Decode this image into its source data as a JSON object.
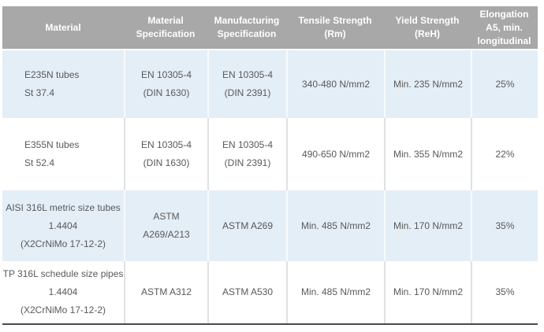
{
  "colors": {
    "header_bg": "#a8a8a8",
    "header_text": "#ffffff",
    "row_alt_bg": "#e4eef6",
    "row_bg": "#ffffff",
    "body_text": "#595959",
    "column_divider_on_alt_row": "#f7fafc",
    "column_divider_on_white_row": "#dfe2e4",
    "bottom_border": "#4a4a4a"
  },
  "table": {
    "columns": [
      {
        "id": "material",
        "lines": [
          "Material"
        ]
      },
      {
        "id": "material-specification",
        "lines": [
          "Material",
          "Specification"
        ]
      },
      {
        "id": "manufacturing-specification",
        "lines": [
          "Manufacturing",
          "Specification"
        ]
      },
      {
        "id": "tensile-strength",
        "lines": [
          "Tensile Strength",
          "(Rm)"
        ]
      },
      {
        "id": "yield-strength",
        "lines": [
          "Yield Strength",
          "(ReH)"
        ]
      },
      {
        "id": "elongation",
        "lines": [
          "Elongation",
          "A5, min.",
          "longitudinal"
        ]
      }
    ],
    "rows": [
      {
        "cells": [
          [
            "E235N tubes",
            "St 37.4"
          ],
          [
            "EN 10305-4",
            "(DIN 1630)"
          ],
          [
            "EN 10305-4",
            "(DIN 2391)"
          ],
          [
            "340-480 N/mm2"
          ],
          [
            "Min. 235 N/mm2"
          ],
          [
            "25%"
          ]
        ]
      },
      {
        "cells": [
          [
            "E355N tubes",
            "St 52.4"
          ],
          [
            "EN 10305-4",
            "(DIN 1630)"
          ],
          [
            "EN 10305-4",
            "(DIN 2391)"
          ],
          [
            "490-650 N/mm2"
          ],
          [
            "Min. 355 N/mm2"
          ],
          [
            "22%"
          ]
        ]
      },
      {
        "cells": [
          [
            "AISI 316L metric size tubes",
            "1.4404",
            "(X2CrNiMo 17-12-2)"
          ],
          [
            "ASTM",
            "A269/A213"
          ],
          [
            "ASTM A269"
          ],
          [
            "Min. 485 N/mm2"
          ],
          [
            "Min. 170 N/mm2"
          ],
          [
            "35%"
          ]
        ]
      },
      {
        "cells": [
          [
            "TP 316L schedule size pipes",
            "1.4404",
            "(X2CrNiMo 17-12-2)"
          ],
          [
            "ASTM A312"
          ],
          [
            "ASTM A530"
          ],
          [
            "Min. 485 N/mm2"
          ],
          [
            "Min. 170 N/mm2"
          ],
          [
            "35%"
          ]
        ]
      }
    ]
  }
}
